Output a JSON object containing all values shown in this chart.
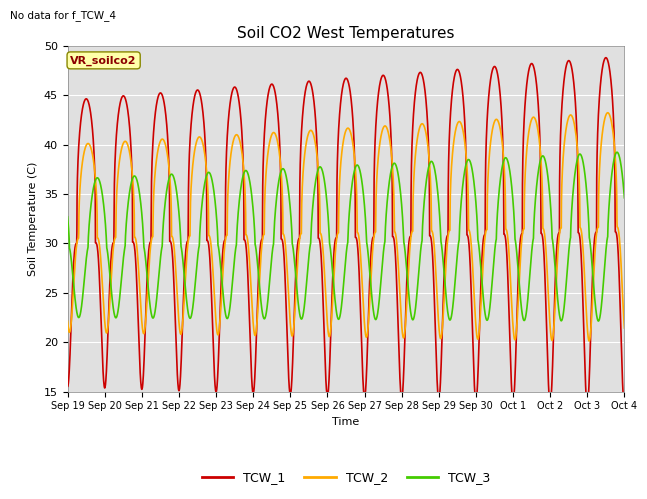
{
  "title": "Soil CO2 West Temperatures",
  "top_left_annotation": "No data for f_TCW_4",
  "vr_label": "VR_soilco2",
  "ylabel": "Soil Temperature (C)",
  "xlabel": "Time",
  "ylim": [
    15,
    50
  ],
  "yticks": [
    15,
    20,
    25,
    30,
    35,
    40,
    45,
    50
  ],
  "background_color": "#e0e0e0",
  "series": [
    {
      "name": "TCW_1",
      "color": "#cc0000",
      "linewidth": 1.2,
      "mean": 30.0,
      "amplitude": 14.5,
      "phase": 0.25,
      "skew": 3.0
    },
    {
      "name": "TCW_2",
      "color": "#ffaa00",
      "linewidth": 1.2,
      "mean": 30.5,
      "amplitude": 9.5,
      "phase": 0.3,
      "skew": 2.5
    },
    {
      "name": "TCW_3",
      "color": "#44cc00",
      "linewidth": 1.2,
      "mean": 29.5,
      "amplitude": 7.0,
      "phase": 0.55,
      "skew": 1.5
    }
  ],
  "xtick_labels": [
    "Sep 19",
    "Sep 20",
    "Sep 21",
    "Sep 22",
    "Sep 23",
    "Sep 24",
    "Sep 25",
    "Sep 26",
    "Sep 27",
    "Sep 28",
    "Sep 29",
    "Sep 30",
    "Oct 1",
    "Oct 2",
    "Oct 3",
    "Oct 4"
  ],
  "n_days": 15,
  "points_per_day": 200
}
